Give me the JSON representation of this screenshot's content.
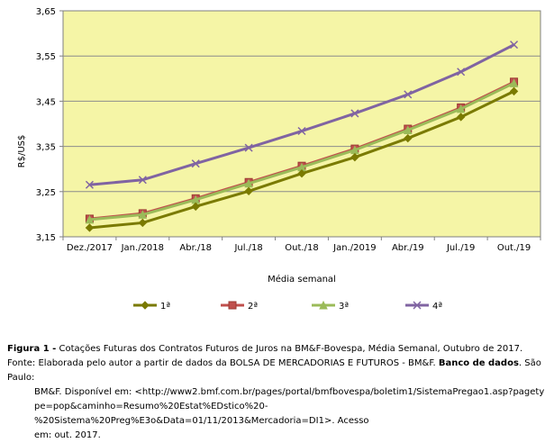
{
  "chart_data": {
    "type": "line",
    "categories": [
      "Dez./2017",
      "Jan./2018",
      "Abr./18",
      "Jul./18",
      "Out./18",
      "Jan./2019",
      "Abr./19",
      "Jul./19",
      "Out./19"
    ],
    "series": [
      {
        "name": "1ª",
        "color": "#7a7a00",
        "marker": "diamond",
        "values": [
          3.17,
          3.181,
          3.217,
          3.251,
          3.29,
          3.326,
          3.368,
          3.415,
          3.472
        ]
      },
      {
        "name": "2ª",
        "color": "#c0504d",
        "marker": "square",
        "values": [
          3.19,
          3.202,
          3.235,
          3.271,
          3.307,
          3.345,
          3.389,
          3.436,
          3.493
        ]
      },
      {
        "name": "3ª",
        "color": "#9bbb59",
        "marker": "triangle",
        "values": [
          3.188,
          3.199,
          3.232,
          3.268,
          3.304,
          3.342,
          3.386,
          3.433,
          3.49
        ]
      },
      {
        "name": "4ª",
        "color": "#8064a2",
        "marker": "x",
        "values": [
          3.265,
          3.276,
          3.312,
          3.347,
          3.384,
          3.423,
          3.465,
          3.515,
          3.575
        ]
      }
    ],
    "xlabel": "Média semanal",
    "ylabel": "R$/US$",
    "ylim": [
      3.15,
      3.65
    ],
    "yticks": [
      "3,15",
      "3,25",
      "3,35",
      "3,45",
      "3,55",
      "3,65"
    ],
    "grid": true,
    "plot_background": "#f5f5a6",
    "legend_position": "bottom"
  },
  "caption": {
    "figure_label": "Figura 1 -",
    "figure_text": " Cotações Futuras dos Contratos Futuros de Juros na BM&F-Bovespa, Média Semanal, Outubro de 2017.",
    "source_label": "Fonte:",
    "source_text_1": " Elaborada pelo autor a partir de dados da BOLSA DE MERCADORIAS E FUTUROS - BM&F. ",
    "source_bold": "Banco de dados",
    "source_text_2": ". São Paulo:",
    "source_line_2": "BM&F. Disponível em: <http://www2.bmf.com.br/pages/portal/bmfbovespa/boletim1/SistemaPregao1.asp?pagety",
    "source_line_3": "pe=pop&caminho=Resumo%20Estat%EDstico%20-%20Sistema%20Preg%E3o&Data=01/11/2013&Mercadoria=DI1>. Acesso",
    "source_line_4": "em: out. 2017."
  }
}
